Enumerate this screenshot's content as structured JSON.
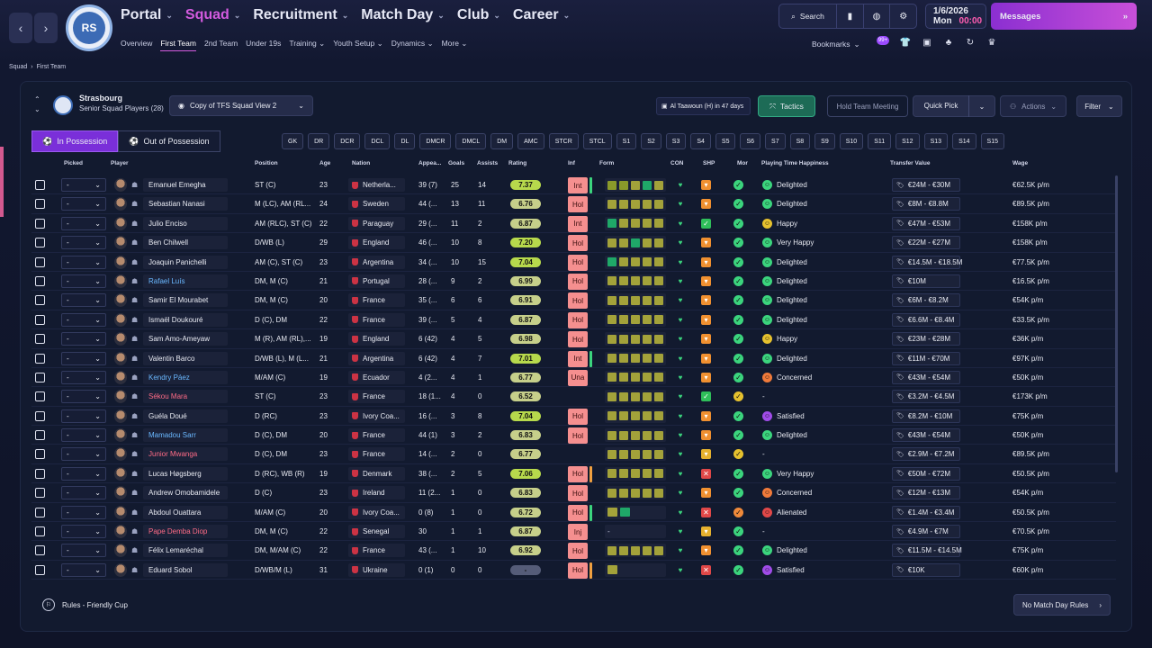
{
  "nav": {
    "items": [
      {
        "label": "Portal",
        "active": false
      },
      {
        "label": "Squad",
        "active": true
      },
      {
        "label": "Recruitment",
        "active": false
      },
      {
        "label": "Match Day",
        "active": false
      },
      {
        "label": "Club",
        "active": false
      },
      {
        "label": "Career",
        "active": false
      }
    ],
    "sub": [
      {
        "label": "Overview",
        "active": false
      },
      {
        "label": "First Team",
        "active": true
      },
      {
        "label": "2nd Team",
        "active": false
      },
      {
        "label": "Under 19s",
        "active": false
      },
      {
        "label": "Training",
        "active": false,
        "dd": true
      },
      {
        "label": "Youth Setup",
        "active": false,
        "dd": true
      },
      {
        "label": "Dynamics",
        "active": false,
        "dd": true
      },
      {
        "label": "More",
        "active": false,
        "dd": true
      }
    ]
  },
  "crest_text": "RS",
  "search_label": "Search",
  "date": {
    "line1": "1/6/2026",
    "day": "Mon",
    "time": "00:00"
  },
  "messages_label": "Messages",
  "bookmarks_label": "Bookmarks",
  "badge_text": "99+",
  "breadcrumb": {
    "a": "Squad",
    "b": "First Team"
  },
  "team": {
    "name": "Strasbourg",
    "sub": "Senior Squad Players (28)"
  },
  "view_label": "Copy of TFS Squad View 2",
  "next_match": "Al Taawoun (H) in 47 days",
  "buttons": {
    "tactics": "Tactics",
    "hold": "Hold Team Meeting",
    "quick": "Quick Pick",
    "actions": "Actions",
    "filter": "Filter"
  },
  "toggle": {
    "in": "In Possession",
    "out": "Out of Possession"
  },
  "positions": [
    "GK",
    "DR",
    "DCR",
    "DCL",
    "DL",
    "DMCR",
    "DMCL",
    "DM",
    "AMC",
    "STCR",
    "STCL",
    "S1",
    "S2",
    "S3",
    "S4",
    "S5",
    "S6",
    "S7",
    "S8",
    "S9",
    "S10",
    "S11",
    "S12",
    "S13",
    "S14",
    "S15"
  ],
  "columns": {
    "picked": "Picked",
    "player": "Player",
    "position": "Position",
    "age": "Age",
    "nation": "Nation",
    "apps": "Appea...",
    "goals": "Goals",
    "assists": "Assists",
    "rating": "Rating",
    "inf": "Inf",
    "form": "Form",
    "con": "CON",
    "shp": "SHP",
    "mor": "Mor",
    "pth": "Playing Time Happiness",
    "tv": "Transfer Value",
    "wage": "Wage"
  },
  "colors": {
    "accent": "#d35bdf",
    "messages": "#b040d8",
    "tactics": "#1d6b56",
    "inf": "#f58f8f"
  },
  "players": [
    {
      "name": "Emanuel Emegha",
      "nc": "",
      "pos": "ST (C)",
      "age": "23",
      "nat": "Netherla...",
      "apps": "39 (7)",
      "g": "25",
      "a": "14",
      "rat": "7.37",
      "inf": "Int",
      "ib": "#3bd47d",
      "form": [
        "g",
        "g",
        "y",
        "G",
        "y"
      ],
      "shp": "o",
      "mor": "g",
      "pth": "Delighted",
      "pe": "g",
      "tv": "€24M - €30M",
      "wage": "€62.5K p/m"
    },
    {
      "name": "Sebastian Nanasi",
      "nc": "",
      "pos": "M (LC), AM (RL...",
      "age": "24",
      "nat": "Sweden",
      "apps": "44 (...",
      "g": "13",
      "a": "11",
      "rat": "6.76",
      "inf": "Hol",
      "ib": "",
      "form": [
        "y",
        "y",
        "y",
        "y",
        "y"
      ],
      "shp": "o",
      "mor": "g",
      "pth": "Delighted",
      "pe": "g",
      "tv": "€8M - €8.8M",
      "wage": "€89.5K p/m"
    },
    {
      "name": "Julio Enciso",
      "nc": "",
      "pos": "AM (RLC), ST (C)",
      "age": "22",
      "nat": "Paraguay",
      "apps": "29 (...",
      "g": "11",
      "a": "2",
      "rat": "6.87",
      "inf": "Int",
      "ib": "",
      "form": [
        "G",
        "y",
        "y",
        "y",
        "y"
      ],
      "shp": "g",
      "mor": "g",
      "pth": "Happy",
      "pe": "y",
      "tv": "€47M - €53M",
      "wage": "€158K p/m"
    },
    {
      "name": "Ben Chilwell",
      "nc": "",
      "pos": "D/WB (L)",
      "age": "29",
      "nat": "England",
      "apps": "46 (...",
      "g": "10",
      "a": "8",
      "rat": "7.20",
      "inf": "Hol",
      "ib": "",
      "form": [
        "y",
        "y",
        "G",
        "y",
        "y"
      ],
      "shp": "o",
      "mor": "g",
      "pth": "Very Happy",
      "pe": "g",
      "tv": "€22M - €27M",
      "wage": "€158K p/m"
    },
    {
      "name": "Joaquin Panichelli",
      "nc": "",
      "pos": "AM (C), ST (C)",
      "age": "23",
      "nat": "Argentina",
      "apps": "34 (...",
      "g": "10",
      "a": "15",
      "rat": "7.04",
      "inf": "Hol",
      "ib": "",
      "form": [
        "G",
        "y",
        "y",
        "y",
        "y"
      ],
      "shp": "o",
      "mor": "g",
      "pth": "Delighted",
      "pe": "g",
      "tv": "€14.5M - €18.5M",
      "wage": "€77.5K p/m"
    },
    {
      "name": "Rafael Luís",
      "nc": "blue",
      "pos": "DM, M (C)",
      "age": "21",
      "nat": "Portugal",
      "apps": "28 (...",
      "g": "9",
      "a": "2",
      "rat": "6.99",
      "inf": "Hol",
      "ib": "",
      "form": [
        "y",
        "y",
        "y",
        "y",
        "y"
      ],
      "shp": "o",
      "mor": "g",
      "pth": "Delighted",
      "pe": "g",
      "tv": "€10M",
      "wage": "€16.5K p/m"
    },
    {
      "name": "Samir El Mourabet",
      "nc": "",
      "pos": "DM, M (C)",
      "age": "20",
      "nat": "France",
      "apps": "35 (...",
      "g": "6",
      "a": "6",
      "rat": "6.91",
      "inf": "Hol",
      "ib": "",
      "form": [
        "y",
        "y",
        "y",
        "y",
        "y"
      ],
      "shp": "o",
      "mor": "g",
      "pth": "Delighted",
      "pe": "g",
      "tv": "€6M - €8.2M",
      "wage": "€54K p/m"
    },
    {
      "name": "Ismaël Doukouré",
      "nc": "",
      "pos": "D (C), DM",
      "age": "22",
      "nat": "France",
      "apps": "39 (...",
      "g": "5",
      "a": "4",
      "rat": "6.87",
      "inf": "Hol",
      "ib": "",
      "form": [
        "y",
        "y",
        "y",
        "y",
        "y"
      ],
      "shp": "o",
      "mor": "g",
      "pth": "Delighted",
      "pe": "g",
      "tv": "€6.6M - €8.4M",
      "wage": "€33.5K p/m"
    },
    {
      "name": "Sam Amo-Ameyaw",
      "nc": "",
      "pos": "M (R), AM (RL),...",
      "age": "19",
      "nat": "England",
      "apps": "6 (42)",
      "g": "4",
      "a": "5",
      "rat": "6.98",
      "inf": "Hol",
      "ib": "",
      "form": [
        "y",
        "y",
        "y",
        "y",
        "y"
      ],
      "shp": "o",
      "mor": "g",
      "pth": "Happy",
      "pe": "y",
      "tv": "€23M - €28M",
      "wage": "€36K p/m"
    },
    {
      "name": "Valentin Barco",
      "nc": "",
      "pos": "D/WB (L), M (L...",
      "age": "21",
      "nat": "Argentina",
      "apps": "6 (42)",
      "g": "4",
      "a": "7",
      "rat": "7.01",
      "inf": "Int",
      "ib": "#3bd47d",
      "form": [
        "y",
        "y",
        "y",
        "y",
        "y"
      ],
      "shp": "o",
      "mor": "g",
      "pth": "Delighted",
      "pe": "g",
      "tv": "€11M - €70M",
      "wage": "€97K p/m"
    },
    {
      "name": "Kendry Páez",
      "nc": "blue",
      "pos": "M/AM (C)",
      "age": "19",
      "nat": "Ecuador",
      "apps": "4 (2...",
      "g": "4",
      "a": "1",
      "rat": "6.77",
      "inf": "Una",
      "ib": "",
      "form": [
        "y",
        "y",
        "y",
        "y",
        "y"
      ],
      "shp": "o",
      "mor": "g",
      "pth": "Concerned",
      "pe": "o",
      "tv": "€43M - €54M",
      "wage": "€50K p/m"
    },
    {
      "name": "Sékou Mara",
      "nc": "red",
      "pos": "ST (C)",
      "age": "23",
      "nat": "France",
      "apps": "18 (1...",
      "g": "4",
      "a": "0",
      "rat": "6.52",
      "inf": "",
      "ib": "",
      "form": [
        "y",
        "y",
        "y",
        "y",
        "y"
      ],
      "shp": "g",
      "mor": "y",
      "pth": "-",
      "pe": "",
      "tv": "€3.2M - €4.5M",
      "wage": "€173K p/m"
    },
    {
      "name": "Guéla Doué",
      "nc": "",
      "pos": "D (RC)",
      "age": "23",
      "nat": "Ivory Coa...",
      "apps": "16 (...",
      "g": "3",
      "a": "8",
      "rat": "7.04",
      "inf": "Hol",
      "ib": "",
      "form": [
        "y",
        "y",
        "y",
        "y",
        "y"
      ],
      "shp": "o",
      "mor": "g",
      "pth": "Satisfied",
      "pe": "p",
      "tv": "€8.2M - €10M",
      "wage": "€75K p/m"
    },
    {
      "name": "Mamadou Sarr",
      "nc": "blue",
      "pos": "D (C), DM",
      "age": "20",
      "nat": "France",
      "apps": "44 (1)",
      "g": "3",
      "a": "2",
      "rat": "6.83",
      "inf": "Hol",
      "ib": "",
      "form": [
        "y",
        "y",
        "y",
        "y",
        "y"
      ],
      "shp": "o",
      "mor": "g",
      "pth": "Delighted",
      "pe": "g",
      "tv": "€43M - €54M",
      "wage": "€50K p/m"
    },
    {
      "name": "Junior Mwanga",
      "nc": "red",
      "pos": "D (C), DM",
      "age": "23",
      "nat": "France",
      "apps": "14 (...",
      "g": "2",
      "a": "0",
      "rat": "6.77",
      "inf": "",
      "ib": "",
      "form": [
        "y",
        "y",
        "y",
        "y",
        "y"
      ],
      "shp": "y",
      "mor": "y",
      "pth": "-",
      "pe": "",
      "tv": "€2.9M - €7.2M",
      "wage": "€89.5K p/m"
    },
    {
      "name": "Lucas Høgsberg",
      "nc": "",
      "pos": "D (RC), WB (R)",
      "age": "19",
      "nat": "Denmark",
      "apps": "38 (...",
      "g": "2",
      "a": "5",
      "rat": "7.06",
      "inf": "Hol",
      "ib": "#f0a040",
      "form": [
        "y",
        "y",
        "y",
        "y",
        "y"
      ],
      "shp": "r",
      "mor": "g",
      "pth": "Very Happy",
      "pe": "g",
      "tv": "€50M - €72M",
      "wage": "€50.5K p/m"
    },
    {
      "name": "Andrew Omobamidele",
      "nc": "",
      "pos": "D (C)",
      "age": "23",
      "nat": "Ireland",
      "apps": "11 (2...",
      "g": "1",
      "a": "0",
      "rat": "6.83",
      "inf": "Hol",
      "ib": "",
      "form": [
        "y",
        "y",
        "y",
        "y",
        "y"
      ],
      "shp": "o",
      "mor": "g",
      "pth": "Concerned",
      "pe": "o",
      "tv": "€12M - €13M",
      "wage": "€54K p/m"
    },
    {
      "name": "Abdoul Ouattara",
      "nc": "",
      "pos": "M/AM (C)",
      "age": "20",
      "nat": "Ivory Coa...",
      "apps": "0 (8)",
      "g": "1",
      "a": "0",
      "rat": "6.72",
      "inf": "Hol",
      "ib": "#3bd47d",
      "form": [
        "y",
        "G"
      ],
      "shp": "r",
      "mor": "o",
      "pth": "Alienated",
      "pe": "r",
      "tv": "€1.4M - €3.4M",
      "wage": "€50.5K p/m"
    },
    {
      "name": "Pape Demba Diop",
      "nc": "red",
      "pos": "DM, M (C)",
      "age": "22",
      "nat": "Senegal",
      "apps": "30",
      "g": "1",
      "a": "1",
      "rat": "6.87",
      "inf": "Inj",
      "ib": "",
      "form": [
        "-"
      ],
      "shp": "y",
      "mor": "g",
      "pth": "-",
      "pe": "",
      "tv": "€4.9M - €7M",
      "wage": "€70.5K p/m"
    },
    {
      "name": "Félix Lemaréchal",
      "nc": "",
      "pos": "DM, M/AM (C)",
      "age": "22",
      "nat": "France",
      "apps": "43 (...",
      "g": "1",
      "a": "10",
      "rat": "6.92",
      "inf": "Hol",
      "ib": "",
      "form": [
        "y",
        "y",
        "y",
        "y",
        "y"
      ],
      "shp": "o",
      "mor": "g",
      "pth": "Delighted",
      "pe": "g",
      "tv": "€11.5M - €14.5M",
      "wage": "€75K p/m"
    },
    {
      "name": "Eduard Sobol",
      "nc": "",
      "pos": "D/WB/M (L)",
      "age": "31",
      "nat": "Ukraine",
      "apps": "0 (1)",
      "g": "0",
      "a": "0",
      "rat": "-",
      "inf": "Hol",
      "ib": "#f0a040",
      "form": [
        "y"
      ],
      "shp": "r",
      "mor": "g",
      "pth": "Satisfied",
      "pe": "p",
      "tv": "€10K",
      "wage": "€60K p/m"
    }
  ],
  "picked_value": "-",
  "footer": {
    "rules": "Rules - Friendly Cup",
    "nmr": "No Match Day Rules"
  }
}
